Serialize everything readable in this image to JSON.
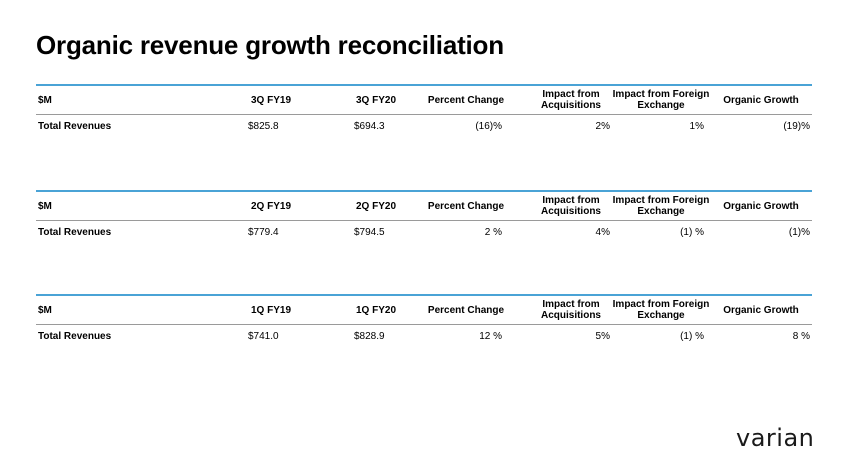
{
  "page": {
    "title": "Organic revenue growth reconciliation"
  },
  "tables": [
    {
      "headers": [
        "$M",
        "3Q FY19",
        "3Q FY20",
        "Percent Change",
        "Impact from Acquisitions",
        "Impact from Foreign Exchange",
        "Organic Growth"
      ],
      "row": [
        "Total Revenues",
        "$825.8",
        "$694.3",
        "(16)%",
        "2%",
        "1%",
        "(19)%"
      ]
    },
    {
      "headers": [
        "$M",
        "2Q FY19",
        "2Q FY20",
        "Percent Change",
        "Impact from Acquisitions",
        "Impact from Foreign Exchange",
        "Organic Growth"
      ],
      "row": [
        "Total Revenues",
        "$779.4",
        "$794.5",
        "2 %",
        "4%",
        "(1) %",
        "(1)%"
      ]
    },
    {
      "headers": [
        "$M",
        "1Q FY19",
        "1Q FY20",
        "Percent Change",
        "Impact from Acquisitions",
        "Impact from Foreign Exchange",
        "Organic Growth"
      ],
      "row": [
        "Total Revenues",
        "$741.0",
        "$828.9",
        "12 %",
        "5%",
        "(1) %",
        "8 %"
      ]
    }
  ],
  "logo": {
    "text": "varian",
    "color": "#1a1a1a"
  },
  "colors": {
    "rule": "#4aa3d6"
  }
}
